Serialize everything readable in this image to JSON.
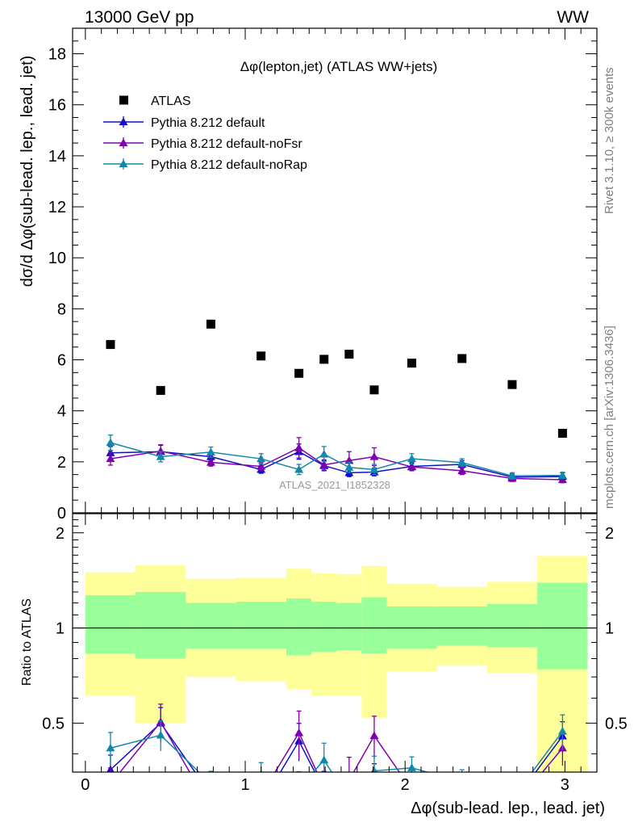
{
  "header": {
    "left": "13000 GeV pp",
    "right": "WW",
    "rivet": "Rivet 3.1.10, ≥ 300k events",
    "mcplots": "mcplots.cern.ch [arXiv:1306.3436]",
    "watermark": "ATLAS_2021_I1852328"
  },
  "chart_data": [
    {
      "type": "scatter",
      "title": "Δφ(lepton,jet) (ATLAS WW+jets)",
      "xlabel": "Δφ(sub-lead. lep., lead. jet)",
      "ylabel": "dσ/d Δφ(sub-lead. lep., lead. jet)",
      "xlim": [
        -0.08,
        3.2
      ],
      "ylim": [
        0,
        19
      ],
      "yticks": [
        "0",
        "2",
        "4",
        "6",
        "8",
        "10",
        "12",
        "14",
        "16",
        "18"
      ],
      "xticks": [
        "0",
        "1",
        "2",
        "3"
      ],
      "legend_position": "top-left",
      "bins": [
        [
          0.0,
          0.314
        ],
        [
          0.314,
          0.628
        ],
        [
          0.628,
          0.942
        ],
        [
          0.942,
          1.257
        ],
        [
          1.257,
          1.414
        ],
        [
          1.414,
          1.571
        ],
        [
          1.571,
          1.728
        ],
        [
          1.728,
          1.885
        ],
        [
          1.885,
          2.199
        ],
        [
          2.199,
          2.513
        ],
        [
          2.513,
          2.827
        ],
        [
          2.827,
          3.142
        ]
      ],
      "x": [
        0.157,
        0.471,
        0.785,
        1.099,
        1.336,
        1.493,
        1.65,
        1.807,
        2.042,
        2.356,
        2.67,
        2.985
      ],
      "series": [
        {
          "name": "ATLAS",
          "color": "#000000",
          "marker": "square",
          "values": [
            6.6,
            4.8,
            7.4,
            6.15,
            5.47,
            6.02,
            6.22,
            4.82,
            5.87,
            6.05,
            5.03,
            3.12
          ]
        },
        {
          "name": "Pythia 8.212 default",
          "color": "#1010c8",
          "marker": "triangle",
          "values": [
            2.35,
            2.4,
            2.2,
            1.7,
            2.4,
            1.85,
            1.57,
            1.6,
            1.82,
            1.9,
            1.4,
            1.42
          ],
          "errors": [
            0.25,
            0.25,
            0.15,
            0.15,
            0.3,
            0.2,
            0.15,
            0.15,
            0.15,
            0.15,
            0.12,
            0.15
          ]
        },
        {
          "name": "Pythia 8.212 default-noFsr",
          "color": "#8000b0",
          "marker": "triangle",
          "values": [
            2.12,
            2.42,
            1.98,
            1.82,
            2.55,
            1.88,
            2.05,
            2.2,
            1.8,
            1.65,
            1.35,
            1.3
          ],
          "errors": [
            0.25,
            0.25,
            0.15,
            0.15,
            0.4,
            0.2,
            0.35,
            0.35,
            0.15,
            0.15,
            0.12,
            0.12
          ]
        },
        {
          "name": "Pythia 8.212 default-noRap",
          "color": "#1188aa",
          "marker": "triangle",
          "values": [
            2.75,
            2.2,
            2.38,
            2.12,
            1.7,
            2.3,
            1.78,
            1.7,
            2.12,
            1.97,
            1.45,
            1.47
          ],
          "errors": [
            0.3,
            0.2,
            0.2,
            0.2,
            0.2,
            0.3,
            0.2,
            0.2,
            0.2,
            0.15,
            0.12,
            0.12
          ]
        }
      ]
    },
    {
      "type": "line",
      "ylabel": "Ratio to ATLAS",
      "xlabel": "Δφ(sub-lead. lep., lead. jet)",
      "xlim": [
        -0.08,
        3.2
      ],
      "ylim": [
        0.35,
        2.3
      ],
      "yticks": [
        "0.5",
        "1",
        "2"
      ],
      "xticks": [
        "0",
        "1",
        "2",
        "3"
      ],
      "reference": 1,
      "band_inner": [
        [
          0.83,
          1.27
        ],
        [
          0.8,
          1.3
        ],
        [
          0.86,
          1.2
        ],
        [
          0.86,
          1.21
        ],
        [
          0.82,
          1.24
        ],
        [
          0.84,
          1.21
        ],
        [
          0.85,
          1.2
        ],
        [
          0.83,
          1.25
        ],
        [
          0.86,
          1.17
        ],
        [
          0.88,
          1.17
        ],
        [
          0.87,
          1.19
        ],
        [
          0.74,
          1.39
        ]
      ],
      "band_outer": [
        [
          0.61,
          1.5
        ],
        [
          0.5,
          1.58
        ],
        [
          0.7,
          1.43
        ],
        [
          0.68,
          1.44
        ],
        [
          0.64,
          1.54
        ],
        [
          0.61,
          1.49
        ],
        [
          0.61,
          1.48
        ],
        [
          0.52,
          1.57
        ],
        [
          0.73,
          1.38
        ],
        [
          0.76,
          1.35
        ],
        [
          0.72,
          1.4
        ],
        [
          0.3,
          1.69
        ]
      ],
      "series": [
        {
          "name": "Pythia 8.212 default",
          "color": "#1010c8",
          "values": [
            0.356,
            0.5,
            0.297,
            0.276,
            0.439,
            0.307,
            0.252,
            0.332,
            0.31,
            0.314,
            0.278,
            0.455
          ],
          "errors": [
            0.04,
            0.06,
            0.03,
            0.03,
            0.06,
            0.04,
            0.03,
            0.04,
            0.03,
            0.03,
            0.03,
            0.05
          ]
        },
        {
          "name": "Pythia 8.212 default-noFsr",
          "color": "#8000b0",
          "values": [
            0.321,
            0.504,
            0.268,
            0.296,
            0.466,
            0.312,
            0.33,
            0.456,
            0.307,
            0.273,
            0.268,
            0.417
          ],
          "errors": [
            0.04,
            0.07,
            0.03,
            0.03,
            0.08,
            0.04,
            0.06,
            0.07,
            0.03,
            0.03,
            0.03,
            0.05
          ]
        },
        {
          "name": "Pythia 8.212 default-noRap",
          "color": "#1188aa",
          "values": [
            0.417,
            0.458,
            0.322,
            0.345,
            0.311,
            0.382,
            0.286,
            0.353,
            0.361,
            0.326,
            0.288,
            0.471
          ],
          "errors": [
            0.05,
            0.05,
            0.03,
            0.03,
            0.04,
            0.05,
            0.03,
            0.04,
            0.03,
            0.03,
            0.03,
            0.06
          ]
        }
      ]
    }
  ]
}
